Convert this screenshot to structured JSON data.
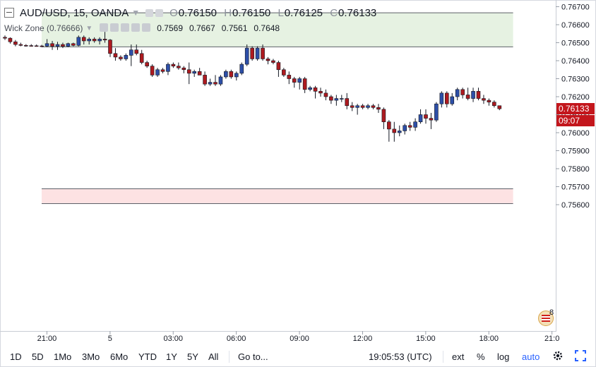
{
  "header": {
    "symbol": "AUD/USD, 15, OANDA",
    "ohlc": [
      {
        "key": "O",
        "value": "0.76150"
      },
      {
        "key": "H",
        "value": "0.76150"
      },
      {
        "key": "L",
        "value": "0.76125"
      },
      {
        "key": "C",
        "value": "0.76133"
      }
    ]
  },
  "indicator": {
    "name": "Wick Zone (0.76666)",
    "values": [
      "0.7569",
      "0.7667",
      "0.7561",
      "0.7648"
    ]
  },
  "price_badges": {
    "last_price": "0.76133",
    "countdown": "09:07"
  },
  "footer_badge": "8",
  "toolbar": {
    "ranges": [
      "1D",
      "5D",
      "1Mo",
      "3Mo",
      "6Mo",
      "YTD",
      "1Y",
      "5Y",
      "All"
    ],
    "goto": "Go to...",
    "time": "19:05:53 (UTC)",
    "ext": "ext",
    "percent": "%",
    "log": "log",
    "auto": "auto"
  },
  "colors": {
    "up": "#2d4fa8",
    "down": "#ad1a1f",
    "zone_top_fill": "#e6f2e2",
    "zone_bottom_fill": "#fde2e3",
    "price_badge": "#c3161c",
    "accent": "#2962ff"
  },
  "chart_data": {
    "type": "candlestick",
    "title": "AUD/USD, 15, OANDA",
    "ylim": [
      0.7555,
      0.7671
    ],
    "y_ticks": [
      "0.75600",
      "0.75700",
      "0.75800",
      "0.75900",
      "0.76000",
      "0.76100",
      "0.76200",
      "0.76300",
      "0.76400",
      "0.76500",
      "0.76600",
      "0.76700"
    ],
    "x_ticks": [
      {
        "label": "21:00",
        "index": 1
      },
      {
        "label": "5",
        "index": 13
      },
      {
        "label": "03:00",
        "index": 25
      },
      {
        "label": "06:00",
        "index": 37
      },
      {
        "label": "09:00",
        "index": 49
      },
      {
        "label": "12:00",
        "index": 61
      },
      {
        "label": "15:00",
        "index": 73
      },
      {
        "label": "18:00",
        "index": 85
      },
      {
        "label": "21:0",
        "index": 97
      }
    ],
    "zones": [
      {
        "name": "supply",
        "high": 0.76666,
        "low": 0.76477,
        "from_index": 0,
        "to_index": 88
      },
      {
        "name": "demand",
        "high": 0.75688,
        "low": 0.75606,
        "from_index": 0,
        "to_index": 88
      }
    ],
    "candles": [
      [
        0.7653,
        0.7654,
        0.76515,
        0.76525
      ],
      [
        0.76525,
        0.7653,
        0.76495,
        0.76505
      ],
      [
        0.76505,
        0.76515,
        0.7648,
        0.7649
      ],
      [
        0.7649,
        0.765,
        0.7648,
        0.76485
      ],
      [
        0.76485,
        0.76492,
        0.76478,
        0.76484
      ],
      [
        0.76484,
        0.76492,
        0.76478,
        0.76483
      ],
      [
        0.76483,
        0.7649,
        0.76478,
        0.76482
      ],
      [
        0.76482,
        0.76488,
        0.76475,
        0.76481
      ],
      [
        0.76481,
        0.7652,
        0.76475,
        0.76495
      ],
      [
        0.76495,
        0.7651,
        0.7646,
        0.7648
      ],
      [
        0.7648,
        0.76505,
        0.7646,
        0.7649
      ],
      [
        0.7649,
        0.765,
        0.7647,
        0.7648
      ],
      [
        0.7648,
        0.765,
        0.76475,
        0.76495
      ],
      [
        0.76495,
        0.765,
        0.7648,
        0.76485
      ],
      [
        0.76485,
        0.7654,
        0.7648,
        0.7653
      ],
      [
        0.7653,
        0.7654,
        0.7649,
        0.7651
      ],
      [
        0.7651,
        0.7653,
        0.7649,
        0.7652
      ],
      [
        0.7652,
        0.7653,
        0.765,
        0.7651
      ],
      [
        0.7651,
        0.7653,
        0.7649,
        0.7652
      ],
      [
        0.7652,
        0.7656,
        0.765,
        0.76515
      ],
      [
        0.76515,
        0.7652,
        0.7642,
        0.7644
      ],
      [
        0.7644,
        0.7647,
        0.764,
        0.7642
      ],
      [
        0.7642,
        0.7643,
        0.764,
        0.7641
      ],
      [
        0.7641,
        0.7644,
        0.764,
        0.7643
      ],
      [
        0.7643,
        0.7649,
        0.7637,
        0.7646
      ],
      [
        0.7646,
        0.7649,
        0.7643,
        0.7644
      ],
      [
        0.7644,
        0.7646,
        0.7638,
        0.7639
      ],
      [
        0.7639,
        0.764,
        0.7636,
        0.7637
      ],
      [
        0.7637,
        0.7638,
        0.7631,
        0.7632
      ],
      [
        0.7632,
        0.7636,
        0.7631,
        0.7635
      ],
      [
        0.7635,
        0.7636,
        0.7633,
        0.7634
      ],
      [
        0.7634,
        0.7639,
        0.7632,
        0.7638
      ],
      [
        0.7638,
        0.7639,
        0.7636,
        0.7637
      ],
      [
        0.7637,
        0.7639,
        0.7635,
        0.7636
      ],
      [
        0.7636,
        0.7637,
        0.7633,
        0.7635
      ],
      [
        0.7635,
        0.7639,
        0.7627,
        0.7633
      ],
      [
        0.7633,
        0.7635,
        0.7631,
        0.7634
      ],
      [
        0.7634,
        0.7636,
        0.7632,
        0.7632
      ],
      [
        0.7632,
        0.7634,
        0.7626,
        0.7627
      ],
      [
        0.7627,
        0.763,
        0.7626,
        0.7628
      ],
      [
        0.7628,
        0.7632,
        0.7626,
        0.7627
      ],
      [
        0.7627,
        0.7632,
        0.7626,
        0.7631
      ],
      [
        0.7631,
        0.7635,
        0.763,
        0.7634
      ],
      [
        0.7634,
        0.7635,
        0.763,
        0.7631
      ],
      [
        0.7631,
        0.7634,
        0.7629,
        0.7633
      ],
      [
        0.7633,
        0.7639,
        0.7632,
        0.7638
      ],
      [
        0.7638,
        0.7649,
        0.7637,
        0.7647
      ],
      [
        0.7647,
        0.7648,
        0.764,
        0.7641
      ],
      [
        0.7641,
        0.7648,
        0.764,
        0.7647
      ],
      [
        0.7647,
        0.7649,
        0.764,
        0.7641
      ],
      [
        0.7641,
        0.7642,
        0.7638,
        0.764
      ],
      [
        0.764,
        0.7641,
        0.7638,
        0.7639
      ],
      [
        0.7639,
        0.764,
        0.7631,
        0.7635
      ],
      [
        0.7635,
        0.7636,
        0.7631,
        0.7632
      ],
      [
        0.7632,
        0.7634,
        0.7627,
        0.763
      ],
      [
        0.763,
        0.7631,
        0.7625,
        0.7628
      ],
      [
        0.7628,
        0.7631,
        0.7624,
        0.763
      ],
      [
        0.763,
        0.7631,
        0.7622,
        0.7624
      ],
      [
        0.7624,
        0.7626,
        0.7623,
        0.7625
      ],
      [
        0.7625,
        0.7626,
        0.7619,
        0.7623
      ],
      [
        0.7623,
        0.7625,
        0.762,
        0.7622
      ],
      [
        0.7622,
        0.7624,
        0.7618,
        0.762
      ],
      [
        0.762,
        0.7621,
        0.7616,
        0.7618
      ],
      [
        0.7618,
        0.7621,
        0.7615,
        0.7619
      ],
      [
        0.7619,
        0.7621,
        0.7617,
        0.7619
      ],
      [
        0.7619,
        0.7622,
        0.7613,
        0.7615
      ],
      [
        0.7615,
        0.7617,
        0.7612,
        0.7614
      ],
      [
        0.7614,
        0.7616,
        0.761,
        0.7615
      ],
      [
        0.7615,
        0.7616,
        0.7613,
        0.7614
      ],
      [
        0.7614,
        0.7616,
        0.7613,
        0.7615
      ],
      [
        0.7615,
        0.7616,
        0.7613,
        0.7614
      ],
      [
        0.7614,
        0.7616,
        0.7611,
        0.7613
      ],
      [
        0.7613,
        0.7614,
        0.7602,
        0.7606
      ],
      [
        0.7606,
        0.7607,
        0.7595,
        0.7602
      ],
      [
        0.7602,
        0.7606,
        0.7595,
        0.76
      ],
      [
        0.76,
        0.7604,
        0.7598,
        0.7601
      ],
      [
        0.7601,
        0.7605,
        0.7599,
        0.7604
      ],
      [
        0.7604,
        0.7606,
        0.7601,
        0.7603
      ],
      [
        0.7603,
        0.7608,
        0.7601,
        0.7606
      ],
      [
        0.7606,
        0.7613,
        0.7605,
        0.761
      ],
      [
        0.761,
        0.7613,
        0.7605,
        0.7608
      ],
      [
        0.7608,
        0.7611,
        0.7602,
        0.7607
      ],
      [
        0.7607,
        0.7617,
        0.7606,
        0.7616
      ],
      [
        0.7616,
        0.7623,
        0.7614,
        0.7622
      ],
      [
        0.7622,
        0.7623,
        0.7614,
        0.7616
      ],
      [
        0.7616,
        0.7622,
        0.7615,
        0.762
      ],
      [
        0.762,
        0.7625,
        0.7618,
        0.7624
      ],
      [
        0.7624,
        0.7625,
        0.7619,
        0.7621
      ],
      [
        0.7621,
        0.7625,
        0.7618,
        0.7619
      ],
      [
        0.7619,
        0.7625,
        0.7617,
        0.7623
      ],
      [
        0.7623,
        0.7625,
        0.7618,
        0.7619
      ],
      [
        0.7619,
        0.7621,
        0.7616,
        0.7618
      ],
      [
        0.7618,
        0.7619,
        0.7615,
        0.7617
      ],
      [
        0.7617,
        0.7618,
        0.7614,
        0.7615
      ],
      [
        0.7615,
        0.7615,
        0.76125,
        0.76133
      ]
    ]
  }
}
